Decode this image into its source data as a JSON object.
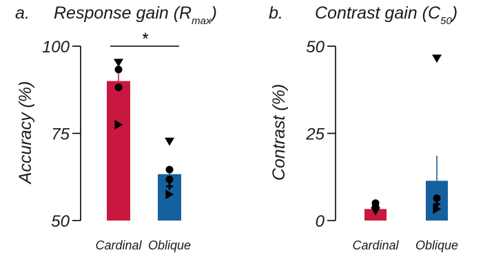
{
  "panels": [
    {
      "letter": "a.",
      "title_main": "Response gain (R",
      "title_sub": "max",
      "title_close": ")",
      "ylabel": "Accuracy (%)",
      "significance": "*"
    },
    {
      "letter": "b.",
      "title_main": "Contrast gain (C",
      "title_sub": "50",
      "title_close": ")",
      "ylabel": "Contrast (%)",
      "significance": ""
    }
  ],
  "colors": {
    "cardinal": "#c8183f",
    "oblique": "#15609e",
    "marker": "#000000"
  },
  "chart_data": [
    {
      "type": "bar",
      "categories": [
        "Cardinal",
        "Oblique"
      ],
      "values": [
        90,
        63.3
      ],
      "errors": [
        2.7,
        1.2
      ],
      "ylim": [
        50,
        100
      ],
      "yticks": [
        "50",
        "75",
        "100"
      ],
      "points": [
        {
          "category": "Cardinal",
          "marker": "triangle-down",
          "value": 95.2
        },
        {
          "category": "Cardinal",
          "marker": "circle",
          "value": 93.3
        },
        {
          "category": "Cardinal",
          "marker": "circle",
          "value": 88.2
        },
        {
          "category": "Cardinal",
          "marker": "triangle-right",
          "value": 77.5
        },
        {
          "category": "Oblique",
          "marker": "triangle-down",
          "value": 72.6
        },
        {
          "category": "Oblique",
          "marker": "circle",
          "value": 64.6
        },
        {
          "category": "Oblique",
          "marker": "circle",
          "value": 61.8
        },
        {
          "category": "Oblique",
          "marker": "plus",
          "value": 59.8
        },
        {
          "category": "Oblique",
          "marker": "triangle-right",
          "value": 57.5
        }
      ]
    },
    {
      "type": "bar",
      "categories": [
        "Cardinal",
        "Oblique"
      ],
      "values": [
        3.3,
        11.4
      ],
      "errors": [
        1.2,
        7.2
      ],
      "ylim": [
        0,
        50
      ],
      "yticks": [
        "0",
        "25",
        "50"
      ],
      "points": [
        {
          "category": "Cardinal",
          "marker": "circle",
          "value": 5.0
        },
        {
          "category": "Cardinal",
          "marker": "circle",
          "value": 3.9
        },
        {
          "category": "Cardinal",
          "marker": "triangle-down",
          "value": 2.6
        },
        {
          "category": "Oblique",
          "marker": "triangle-down",
          "value": 46.4
        },
        {
          "category": "Oblique",
          "marker": "circle",
          "value": 6.4
        },
        {
          "category": "Oblique",
          "marker": "plus",
          "value": 4.7
        },
        {
          "category": "Oblique",
          "marker": "triangle-right",
          "value": 3.3
        }
      ]
    }
  ]
}
